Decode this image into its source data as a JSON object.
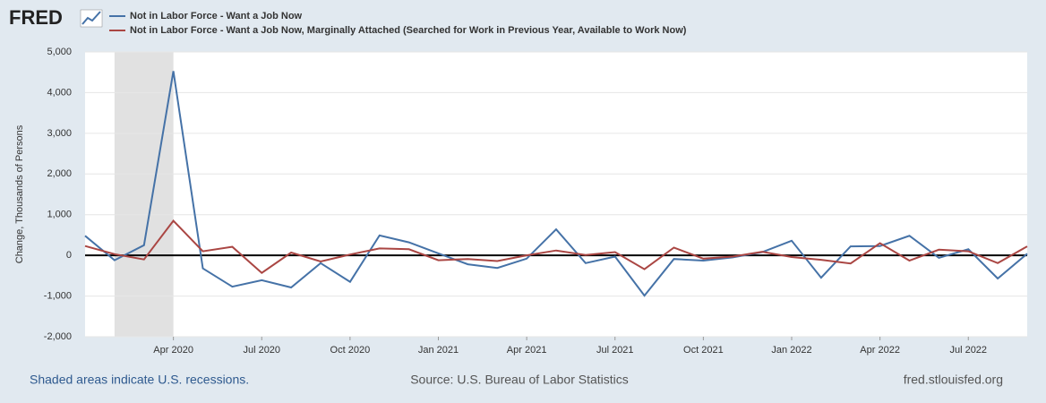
{
  "chart_data": {
    "type": "line",
    "brand": "FRED",
    "y_label": "Change, Thousands of Persons",
    "x": [
      "2020-01",
      "2020-02",
      "2020-03",
      "2020-04",
      "2020-05",
      "2020-06",
      "2020-07",
      "2020-08",
      "2020-09",
      "2020-10",
      "2020-11",
      "2020-12",
      "2021-01",
      "2021-02",
      "2021-03",
      "2021-04",
      "2021-05",
      "2021-06",
      "2021-07",
      "2021-08",
      "2021-09",
      "2021-10",
      "2021-11",
      "2021-12",
      "2022-01",
      "2022-02",
      "2022-03",
      "2022-04",
      "2022-05",
      "2022-06",
      "2022-07",
      "2022-08",
      "2022-09"
    ],
    "series": [
      {
        "name": "Not in Labor Force - Want a Job Now",
        "color": "#4572a7",
        "values": [
          480,
          -120,
          250,
          4530,
          -320,
          -770,
          -610,
          -790,
          -190,
          -650,
          490,
          320,
          50,
          -220,
          -310,
          -80,
          640,
          -190,
          -30,
          -990,
          -90,
          -130,
          -50,
          80,
          360,
          -550,
          220,
          230,
          480,
          -60,
          150,
          -570,
          40
        ]
      },
      {
        "name": "Not in Labor Force - Want a Job Now, Marginally Attached (Searched for Work in Previous Year, Available to Work Now)",
        "color": "#aa4643",
        "values": [
          230,
          30,
          -100,
          850,
          100,
          210,
          -430,
          70,
          -150,
          20,
          170,
          150,
          -120,
          -90,
          -140,
          0,
          120,
          10,
          80,
          -340,
          190,
          -80,
          -30,
          90,
          -40,
          -110,
          -200,
          300,
          -130,
          140,
          100,
          -190,
          220
        ]
      }
    ],
    "recessions": [
      {
        "start": "2020-02",
        "end": "2020-04"
      }
    ],
    "ylim": [
      -2000,
      5000
    ],
    "yticks": [
      {
        "value": -2000,
        "label": "-2,000"
      },
      {
        "value": -1000,
        "label": "-1,000"
      },
      0,
      {
        "value": 1000,
        "label": "1,000"
      },
      {
        "value": 2000,
        "label": "2,000"
      },
      {
        "value": 3000,
        "label": "3,000"
      },
      {
        "value": 4000,
        "label": "4,000"
      },
      {
        "value": 5000,
        "label": "5,000"
      }
    ],
    "xticks": [
      {
        "value": "2020-04",
        "label": "Apr 2020"
      },
      {
        "value": "2020-07",
        "label": "Jul 2020"
      },
      {
        "value": "2020-10",
        "label": "Oct 2020"
      },
      {
        "value": "2021-01",
        "label": "Jan 2021"
      },
      {
        "value": "2021-04",
        "label": "Apr 2021"
      },
      {
        "value": "2021-07",
        "label": "Jul 2021"
      },
      {
        "value": "2021-10",
        "label": "Oct 2021"
      },
      {
        "value": "2022-01",
        "label": "Jan 2022"
      },
      {
        "value": "2022-04",
        "label": "Apr 2022"
      },
      {
        "value": "2022-07",
        "label": "Jul 2022"
      }
    ],
    "grid": true,
    "footer": {
      "recession_note": "Shaded areas indicate U.S. recessions.",
      "source": "Source: U.S. Bureau of Labor Statistics",
      "site": "fred.stlouisfed.org"
    }
  }
}
